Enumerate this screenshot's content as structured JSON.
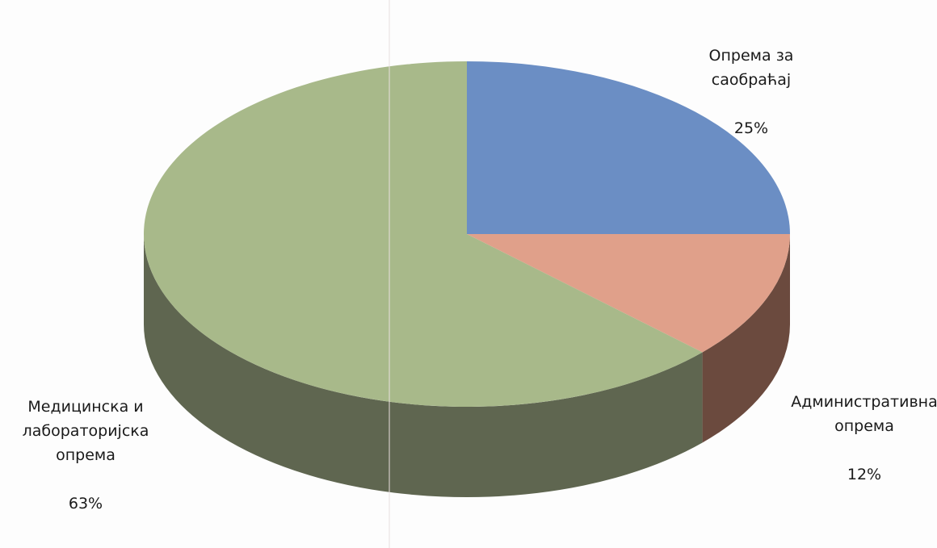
{
  "chart_data": {
    "type": "pie",
    "style": "3d",
    "slices": [
      {
        "label": "Опрема за саобраћај",
        "value": 25,
        "percent_label": "25%",
        "color": "#6b8ec4",
        "side_color": "#3f5a82"
      },
      {
        "label": "Административна опрема",
        "value": 12,
        "percent_label": "12%",
        "color": "#e0a08a",
        "side_color": "#6b4a3e"
      },
      {
        "label": "Медицинска и лабораторијска опрема",
        "value": 63,
        "percent_label": "63%",
        "color": "#a8b98a",
        "side_color": "#5f6650"
      }
    ]
  },
  "labels": [
    {
      "name_text": "Опрема за\nсаобраћај",
      "percent": "25%"
    },
    {
      "name_text": "Административна\nопрема",
      "percent": "12%"
    },
    {
      "name_text": "Медицинска и\nлабораторијска\nопрема",
      "percent": "63%"
    }
  ]
}
